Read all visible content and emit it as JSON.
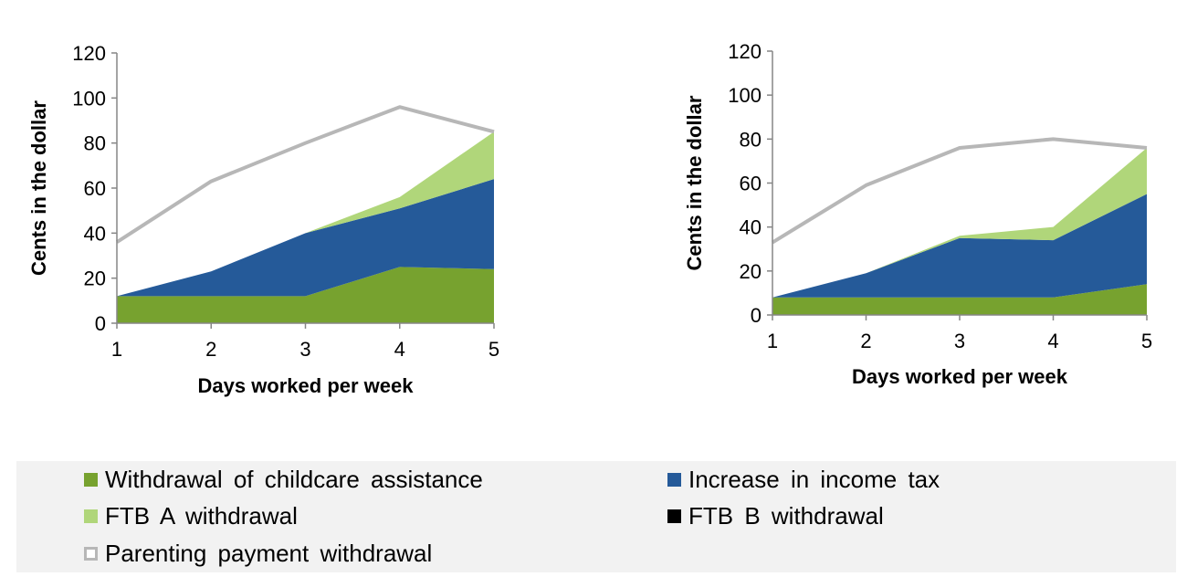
{
  "chart_data": [
    {
      "type": "area",
      "x": [
        1,
        2,
        3,
        4,
        5
      ],
      "xlabel": "Days worked per week",
      "ylabel": "Cents in the dollar",
      "ylim": [
        0,
        120
      ],
      "yticks": [
        0,
        20,
        40,
        60,
        80,
        100,
        120
      ],
      "grid": false,
      "legend": "bottom",
      "stack_order": [
        "childcare",
        "income_tax",
        "ftb_a",
        "ftb_b",
        "parenting"
      ],
      "series": [
        {
          "key": "childcare",
          "name": "Withdrawal of childcare assistance",
          "values": [
            12,
            12,
            12,
            25,
            24
          ]
        },
        {
          "key": "income_tax",
          "name": "Increase in income tax",
          "values": [
            0,
            11,
            28,
            26,
            40
          ]
        },
        {
          "key": "ftb_a",
          "name": "FTB A withdrawal",
          "values": [
            0,
            0,
            0,
            5,
            21
          ]
        },
        {
          "key": "ftb_b",
          "name": "FTB B withdrawal",
          "values": [
            0,
            0,
            0,
            0,
            0
          ]
        },
        {
          "key": "parenting",
          "name": "Parenting payment withdrawal",
          "values": [
            24,
            40,
            40,
            40,
            0
          ]
        }
      ]
    },
    {
      "type": "area",
      "x": [
        1,
        2,
        3,
        4,
        5
      ],
      "xlabel": "Days worked per week",
      "ylabel": "Cents in the dollar",
      "ylim": [
        0,
        120
      ],
      "yticks": [
        0,
        20,
        40,
        60,
        80,
        100,
        120
      ],
      "grid": false,
      "legend": "bottom",
      "stack_order": [
        "childcare",
        "income_tax",
        "ftb_a",
        "ftb_b",
        "parenting"
      ],
      "series": [
        {
          "key": "childcare",
          "name": "Withdrawal of childcare assistance",
          "values": [
            8,
            8,
            8,
            8,
            14
          ]
        },
        {
          "key": "income_tax",
          "name": "Increase in income tax",
          "values": [
            0,
            11,
            27,
            26,
            41
          ]
        },
        {
          "key": "ftb_a",
          "name": "FTB A withdrawal",
          "values": [
            0,
            0,
            1,
            6,
            21
          ]
        },
        {
          "key": "ftb_b",
          "name": "FTB B withdrawal",
          "values": [
            0,
            0,
            0,
            0,
            0
          ]
        },
        {
          "key": "parenting",
          "name": "Parenting payment withdrawal",
          "values": [
            25,
            40,
            40,
            40,
            0
          ]
        }
      ]
    }
  ],
  "colors": {
    "childcare": "#77a22f",
    "income_tax": "#255a99",
    "ftb_a": "#b0d67a",
    "ftb_b": "#000000",
    "parenting": "#b7b7b7"
  },
  "legend": {
    "items": [
      {
        "key": "childcare",
        "label": "Withdrawal of childcare assistance",
        "swatch": "filled"
      },
      {
        "key": "income_tax",
        "label": "Increase in income tax",
        "swatch": "filled"
      },
      {
        "key": "ftb_a",
        "label": "FTB A withdrawal",
        "swatch": "filled"
      },
      {
        "key": "ftb_b",
        "label": "FTB B withdrawal",
        "swatch": "filled"
      },
      {
        "key": "parenting",
        "label": "Parenting payment withdrawal",
        "swatch": "outline"
      }
    ]
  }
}
